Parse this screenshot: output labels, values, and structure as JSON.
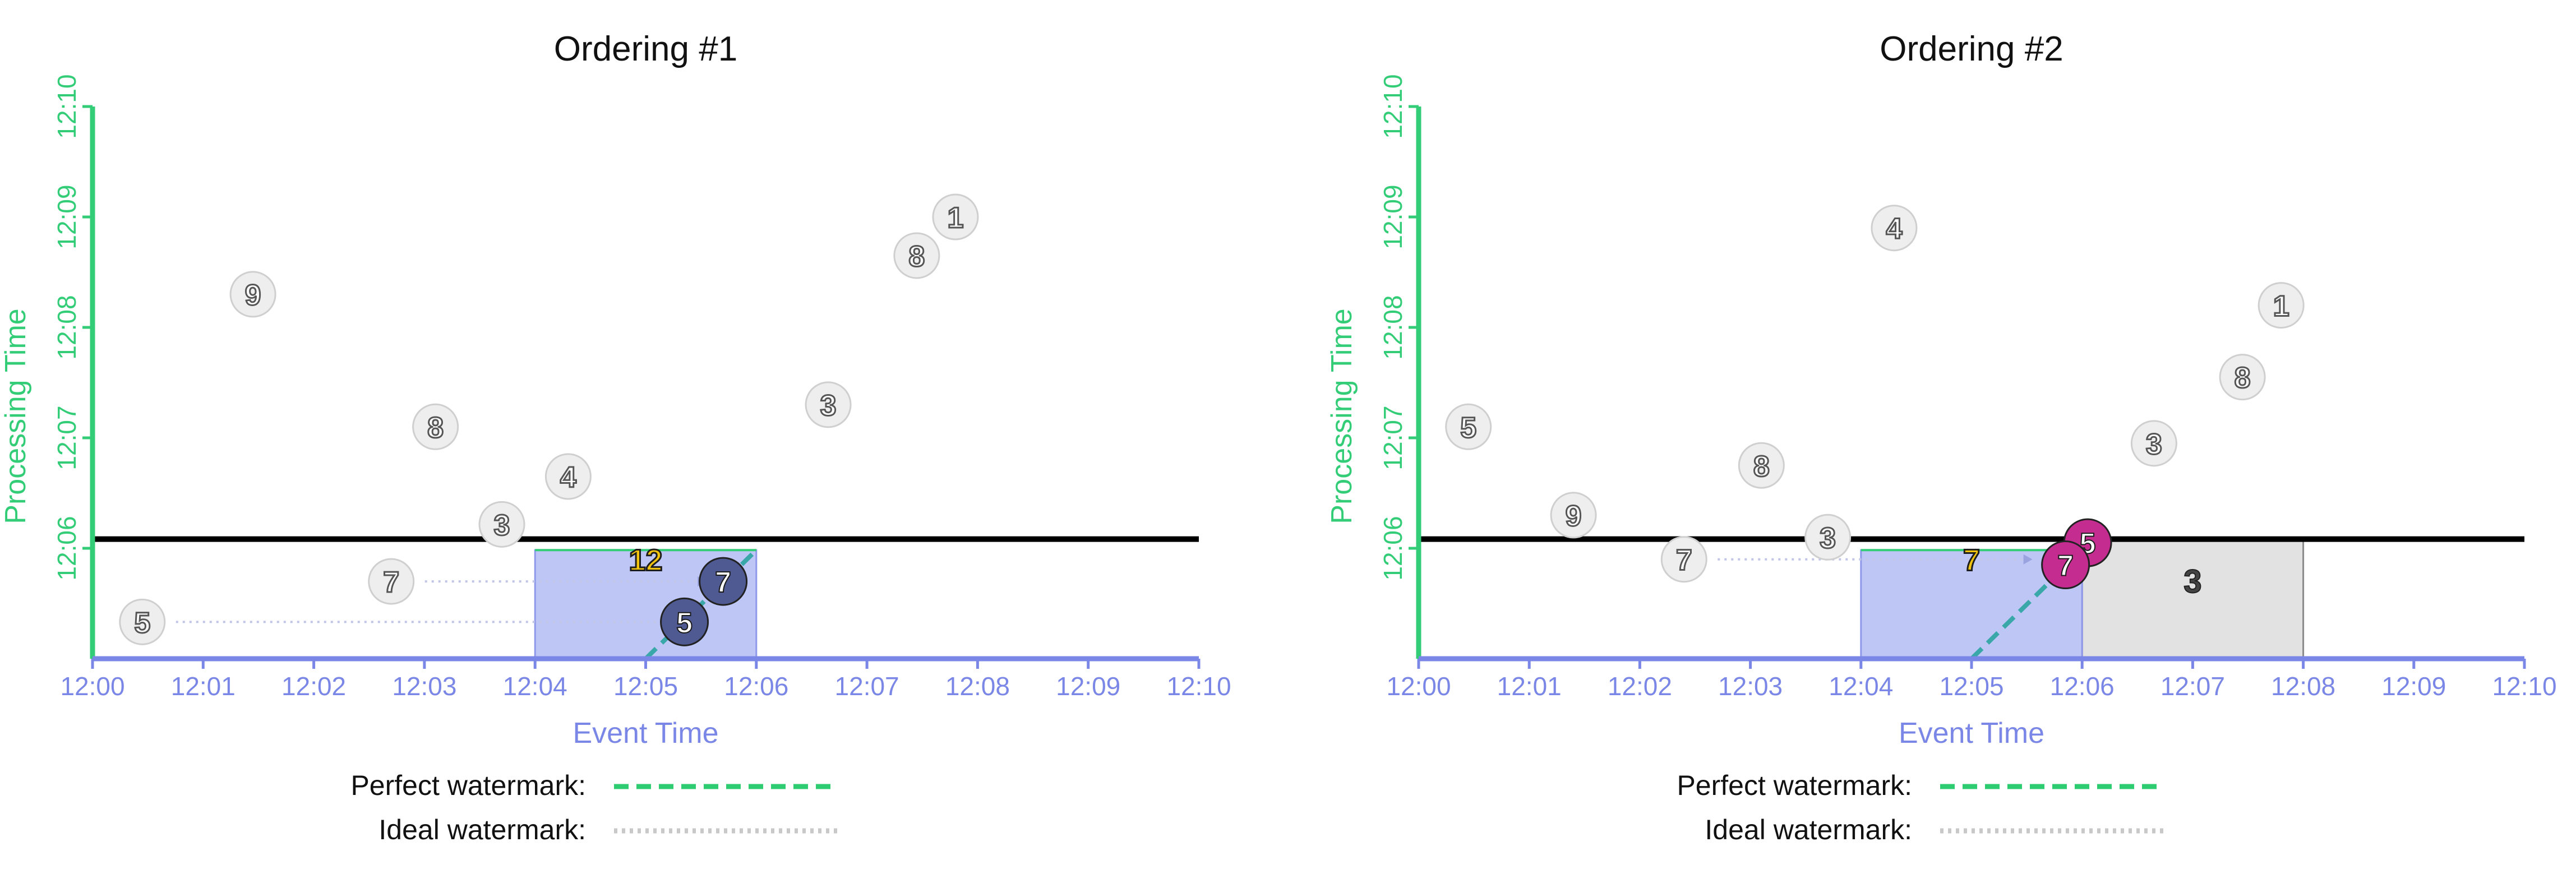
{
  "chart_data": [
    {
      "type": "scatter",
      "title": "Ordering #1",
      "xlabel": "Event Time",
      "ylabel": "Processing Time",
      "xlim": [
        "12:00",
        "12:10"
      ],
      "ylim": [
        "12:05",
        "12:10"
      ],
      "x_ticks": [
        "12:00",
        "12:01",
        "12:02",
        "12:03",
        "12:04",
        "12:05",
        "12:06",
        "12:07",
        "12:08",
        "12:09",
        "12:10"
      ],
      "y_ticks": [
        "12:06",
        "12:07",
        "12:08",
        "12:09",
        "12:10"
      ],
      "points": [
        {
          "label": "5",
          "x": "12:00:27",
          "y": "12:05:20"
        },
        {
          "label": "7",
          "x": "12:02:42",
          "y": "12:05:42"
        },
        {
          "label": "3",
          "x": "12:03:42",
          "y": "12:06:13"
        },
        {
          "label": "8",
          "x": "12:03:06",
          "y": "12:07:06"
        },
        {
          "label": "4",
          "x": "12:04:18",
          "y": "12:06:39"
        },
        {
          "label": "9",
          "x": "12:01:27",
          "y": "12:08:18"
        },
        {
          "label": "3",
          "x": "12:06:39",
          "y": "12:07:18"
        },
        {
          "label": "8",
          "x": "12:07:27",
          "y": "12:08:39"
        },
        {
          "label": "1",
          "x": "12:07:48",
          "y": "12:09:00"
        }
      ],
      "window": {
        "start": "12:04",
        "end": "12:06",
        "color": "#b3bcf5",
        "result": "12"
      },
      "shaded_window": null,
      "highlighted_points": [
        {
          "label": "5",
          "x": "12:05:21",
          "y": "12:05:20",
          "color": "#4f5a92"
        },
        {
          "label": "7",
          "x": "12:05:42",
          "y": "12:05:42",
          "color": "#4f5a92"
        }
      ],
      "processing_time_line": "12:06:05",
      "arrows_from": [
        0,
        1
      ]
    },
    {
      "type": "scatter",
      "title": "Ordering #2",
      "xlabel": "Event Time",
      "ylabel": "Processing Time",
      "xlim": [
        "12:00",
        "12:10"
      ],
      "ylim": [
        "12:05",
        "12:10"
      ],
      "x_ticks": [
        "12:00",
        "12:01",
        "12:02",
        "12:03",
        "12:04",
        "12:05",
        "12:06",
        "12:07",
        "12:08",
        "12:09",
        "12:10"
      ],
      "y_ticks": [
        "12:06",
        "12:07",
        "12:08",
        "12:09",
        "12:10"
      ],
      "points": [
        {
          "label": "5",
          "x": "12:00:27",
          "y": "12:07:06"
        },
        {
          "label": "9",
          "x": "12:01:24",
          "y": "12:06:18"
        },
        {
          "label": "7",
          "x": "12:02:24",
          "y": "12:05:54"
        },
        {
          "label": "8",
          "x": "12:03:06",
          "y": "12:06:45"
        },
        {
          "label": "3",
          "x": "12:03:42",
          "y": "12:06:06"
        },
        {
          "label": "4",
          "x": "12:04:18",
          "y": "12:08:54"
        },
        {
          "label": "3",
          "x": "12:06:39",
          "y": "12:06:57"
        },
        {
          "label": "8",
          "x": "12:07:27",
          "y": "12:07:33"
        },
        {
          "label": "1",
          "x": "12:07:48",
          "y": "12:08:12"
        }
      ],
      "window": {
        "start": "12:04",
        "end": "12:06",
        "color": "#b3bcf5",
        "result": "7"
      },
      "shaded_window": {
        "start": "12:06",
        "end": "12:08",
        "color": "#e2e2e2",
        "result": "3"
      },
      "highlighted_points": [
        {
          "label": "5",
          "x": "12:06:03",
          "y": "12:06:03",
          "color": "#c42c8f"
        },
        {
          "label": "7",
          "x": "12:05:51",
          "y": "12:05:51",
          "color": "#c42c8f"
        }
      ],
      "processing_time_line": "12:06:05",
      "arrows_from": [
        2
      ]
    }
  ],
  "legend": {
    "perfect_label": "Perfect watermark:",
    "ideal_label": "Ideal watermark:",
    "perfect_color": "#2ecc71",
    "ideal_color": "#c8c8c8"
  },
  "colors": {
    "x_axis": "#7b87e6",
    "y_axis": "#33cc77",
    "window": "#b3bcf5",
    "window_edge": "#8f99ea",
    "processing_line": "#000000",
    "point_fill": "#eeeeee",
    "point_stroke": "#cfcfcf",
    "pane_result": "#f2c40f",
    "watermark_line": "#3aa8a8"
  }
}
